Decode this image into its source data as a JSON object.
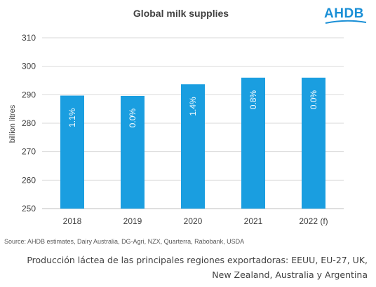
{
  "logo": {
    "text": "AHDB",
    "color": "#1a8fd6"
  },
  "chart_data": {
    "type": "bar",
    "title": "Global milk supplies",
    "xlabel": "",
    "ylabel": "billion litres",
    "ylim": [
      250,
      310
    ],
    "yticks": [
      250,
      260,
      270,
      280,
      290,
      300,
      310
    ],
    "categories": [
      "2018",
      "2019",
      "2020",
      "2021",
      "2022 (f)"
    ],
    "values": [
      289.7,
      289.6,
      293.7,
      296.0,
      296.0
    ],
    "bar_labels": [
      "1.1%",
      "0.0%",
      "1.4%",
      "0.8%",
      "0.0%"
    ],
    "bar_color": "#1a9ee0",
    "grid": true
  },
  "source": "Source: AHDB estimates, Dairy Australia, DG-Agri, NZX, Quarterra, Rabobank, USDA",
  "caption": "Producción láctea de las principales regiones exportadoras: EEUU, EU-27, UK, New Zealand, Australia y Argentina"
}
